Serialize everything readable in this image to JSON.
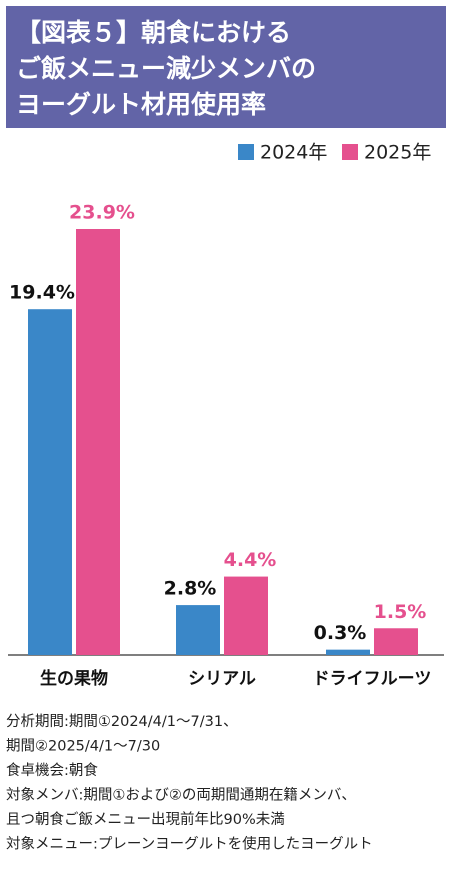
{
  "chart_data": {
    "type": "bar",
    "title": [
      "【図表５】朝食における",
      "ご飯メニュー減少メンバの",
      "ヨーグルト材用使用率"
    ],
    "categories": [
      "生の果物",
      "シリアル",
      "ドライフルーツ"
    ],
    "series": [
      {
        "name": "2024年",
        "color": "#3a87c8",
        "label_color": "#111111",
        "values": [
          19.4,
          2.8,
          0.3
        ],
        "value_labels": [
          "19.4%",
          "2.8%",
          "0.3%"
        ]
      },
      {
        "name": "2025年",
        "color": "#e5508e",
        "label_color": "#e5508e",
        "values": [
          23.9,
          4.4,
          1.5
        ],
        "value_labels": [
          "23.9%",
          "4.4%",
          "1.5%"
        ]
      }
    ],
    "notes": [
      "分析期間:期間①2024/4/1～7/31、",
      "期間②2025/4/1～7/30",
      "食卓機会:朝食",
      "対象メンバ:期間①および②の両期間通期在籍メンバ、",
      "且つ朝食ご飯メニュー出現前年比90%未満",
      "対象メニュー:プレーンヨーグルトを使用したヨーグルト"
    ]
  }
}
